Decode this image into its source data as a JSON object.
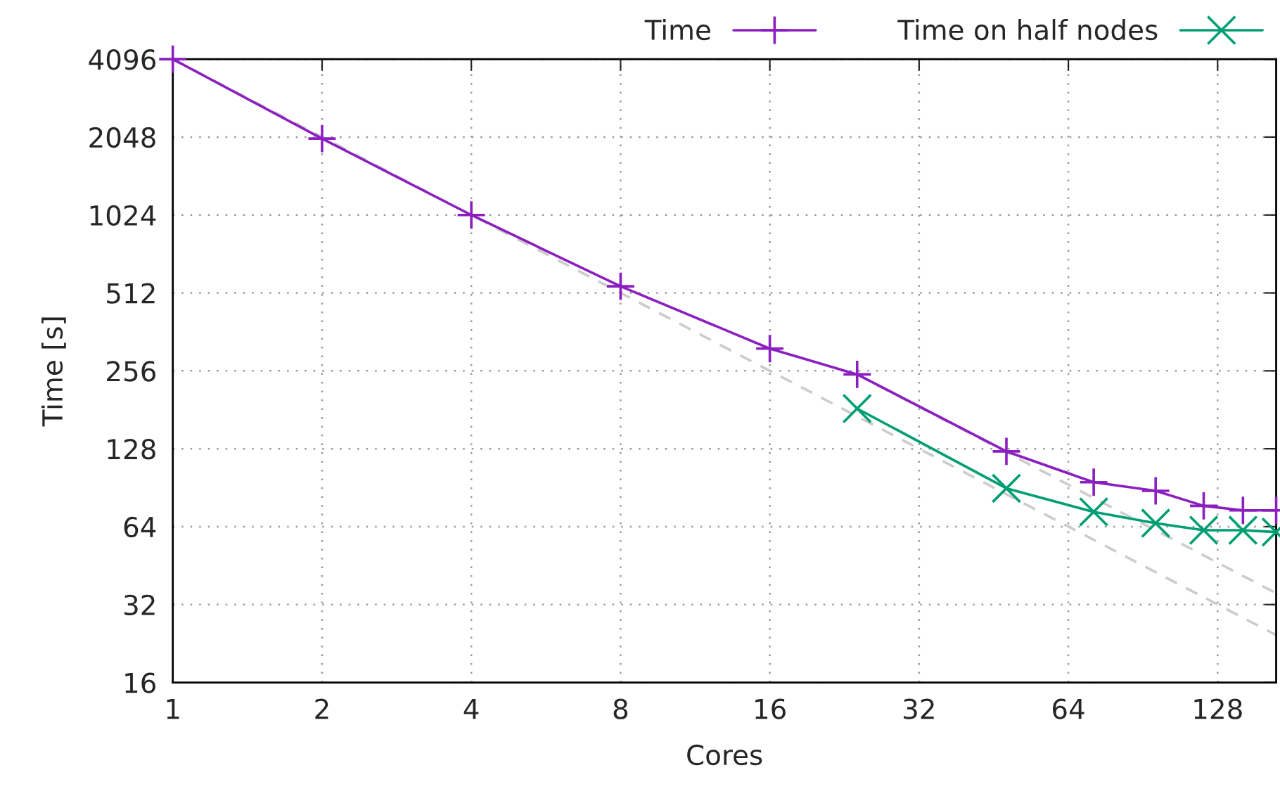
{
  "chart_data": {
    "type": "line",
    "xlabel": "Cores",
    "ylabel": "Time [s]",
    "log": "xy",
    "xlim": [
      1,
      168
    ],
    "xticks": [
      1,
      2,
      4,
      8,
      16,
      32,
      64,
      128
    ],
    "ylim": [
      16,
      4096
    ],
    "yticks": [
      16,
      32,
      64,
      128,
      256,
      512,
      1024,
      2048,
      4096
    ],
    "grid": true,
    "legend": "top",
    "series": [
      {
        "name": "Time",
        "color": "#8b1fbf",
        "marker": "plus",
        "line_style": "solid",
        "x": [
          1,
          2,
          4,
          8,
          16,
          24,
          48,
          72,
          96,
          120,
          144,
          168
        ],
        "values": [
          4096,
          2020,
          1024,
          543,
          312,
          248,
          125,
          95,
          88,
          77,
          74,
          74
        ]
      },
      {
        "name": "Time on half nodes",
        "color": "#009e73",
        "marker": "cross",
        "line_style": "solid",
        "x": [
          24,
          48,
          72,
          96,
          120,
          144,
          168
        ],
        "values": [
          183,
          90,
          73,
          66,
          62,
          62,
          61
        ]
      },
      {
        "color": "#cccccc",
        "marker": "none",
        "line_style": "dashed",
        "x": [
          1,
          168
        ],
        "values": [
          4096,
          24.4
        ]
      },
      {
        "color": "#cccccc",
        "marker": "none",
        "line_style": "dashed",
        "x": [
          24,
          168
        ],
        "values": [
          248,
          35.4
        ]
      }
    ]
  }
}
